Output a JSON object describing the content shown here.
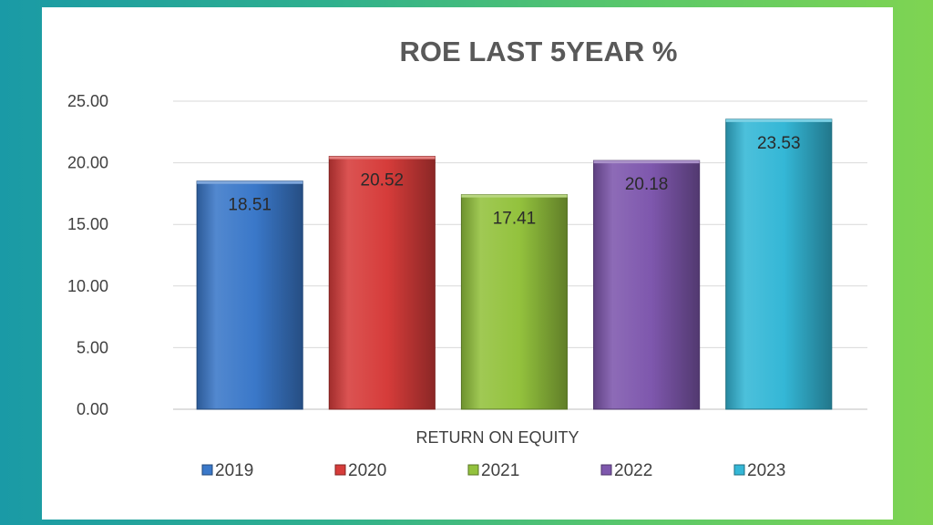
{
  "chart_data": {
    "type": "bar",
    "title": "ROE LAST 5YEAR %",
    "xlabel": "RETURN ON EQUITY",
    "ylabel": "",
    "categories": [
      "RETURN ON EQUITY"
    ],
    "series": [
      {
        "name": "2019",
        "values": [
          18.51
        ],
        "color": "#3a78c9"
      },
      {
        "name": "2020",
        "values": [
          20.52
        ],
        "color": "#d63c3a"
      },
      {
        "name": "2021",
        "values": [
          17.41
        ],
        "color": "#93c23d"
      },
      {
        "name": "2022",
        "values": [
          20.18
        ],
        "color": "#7e57ad"
      },
      {
        "name": "2023",
        "values": [
          23.53
        ],
        "color": "#34b7d6"
      }
    ],
    "ylim": [
      0,
      25
    ],
    "yticks": [
      "0.00",
      "5.00",
      "10.00",
      "15.00",
      "20.00",
      "25.00"
    ],
    "data_labels": [
      "18.51",
      "20.52",
      "17.41",
      "20.18",
      "23.53"
    ],
    "grid": true,
    "legend": "bottom"
  }
}
